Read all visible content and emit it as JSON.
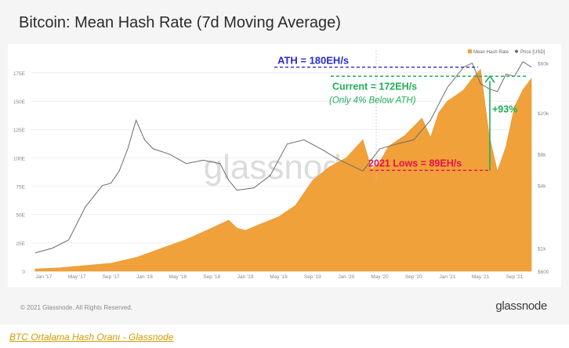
{
  "title": "Bitcoin: Mean Hash Rate (7d Moving Average)",
  "footer": {
    "copyright": "© 2021 Glassnode. All Rights Reserved.",
    "brand": "glassnode"
  },
  "caption": "BTC Ortalama Hash Oranı - Glassnode",
  "watermark": "glassnode",
  "colors": {
    "hash": "#f0a13a",
    "price": "#6b6b6b",
    "ath": "#2a2ad4",
    "current": "#1fae5a",
    "lows": "#e8104a"
  },
  "chart_data": {
    "type": "area",
    "x_tick_labels": [
      "Jan '17",
      "May '17",
      "Sep '17",
      "Jan '18",
      "May '18",
      "Sep '18",
      "Jan '19",
      "May '19",
      "Sep '19",
      "Jan '20",
      "May '20",
      "Sep '20",
      "Jan '21",
      "May '21",
      "Sep '21"
    ],
    "y_left_ticks": [
      "0",
      "25E",
      "50E",
      "75E",
      "100E",
      "125E",
      "150E",
      "175E"
    ],
    "y_right_ticks": [
      "$600",
      "$1k",
      "$4k",
      "$8k",
      "$20k",
      "$60k"
    ],
    "ylim_left": [
      0,
      195
    ],
    "legend": [
      "Mean Hash Rate",
      "Price [USD]"
    ],
    "hash_rate_series": {
      "name": "Mean Hash Rate",
      "x": [
        "2016-12",
        "2017-03",
        "2017-06",
        "2017-09",
        "2017-12",
        "2018-03",
        "2018-06",
        "2018-09",
        "2018-11",
        "2018-12",
        "2019-01",
        "2019-03",
        "2019-05",
        "2019-07",
        "2019-09",
        "2019-11",
        "2020-01",
        "2020-03",
        "2020-04",
        "2020-05",
        "2020-06",
        "2020-08",
        "2020-10",
        "2020-11",
        "2020-12",
        "2021-01",
        "2021-02",
        "2021-03",
        "2021-04",
        "2021-05",
        "2021-06",
        "2021-07",
        "2021-08",
        "2021-09",
        "2021-10",
        "2021-11"
      ],
      "values": [
        2,
        3,
        5,
        7,
        12,
        20,
        28,
        38,
        45,
        38,
        36,
        42,
        48,
        58,
        80,
        92,
        100,
        116,
        90,
        96,
        110,
        120,
        135,
        118,
        140,
        150,
        155,
        160,
        170,
        178,
        120,
        88,
        110,
        145,
        160,
        170
      ]
    },
    "price_series": {
      "name": "Price [USD]",
      "x": [
        "2016-12",
        "2017-02",
        "2017-04",
        "2017-06",
        "2017-08",
        "2017-09",
        "2017-10",
        "2017-11",
        "2017-12",
        "2018-01",
        "2018-02",
        "2018-04",
        "2018-06",
        "2018-08",
        "2018-10",
        "2018-11",
        "2018-12",
        "2019-02",
        "2019-04",
        "2019-06",
        "2019-08",
        "2019-10",
        "2019-12",
        "2020-03",
        "2020-05",
        "2020-07",
        "2020-09",
        "2020-11",
        "2021-01",
        "2021-03",
        "2021-04",
        "2021-05",
        "2021-06",
        "2021-07",
        "2021-08",
        "2021-09",
        "2021-10",
        "2021-11"
      ],
      "values": [
        900,
        1000,
        1200,
        2500,
        4000,
        4200,
        5500,
        9000,
        17000,
        11000,
        9000,
        8000,
        6500,
        7000,
        6500,
        4500,
        3600,
        3800,
        5000,
        10000,
        11000,
        9000,
        7200,
        5500,
        9000,
        10000,
        11000,
        17000,
        35000,
        55000,
        60000,
        38000,
        34000,
        32000,
        47000,
        45000,
        62000,
        55000
      ]
    },
    "annotations": {
      "ath": "ATH = 180EH/s",
      "current": "Current = 172EH/s",
      "current_note": "(Only 4% Below ATH)",
      "change": "+93%",
      "lows": "2021 Lows = 89EH/s"
    }
  }
}
